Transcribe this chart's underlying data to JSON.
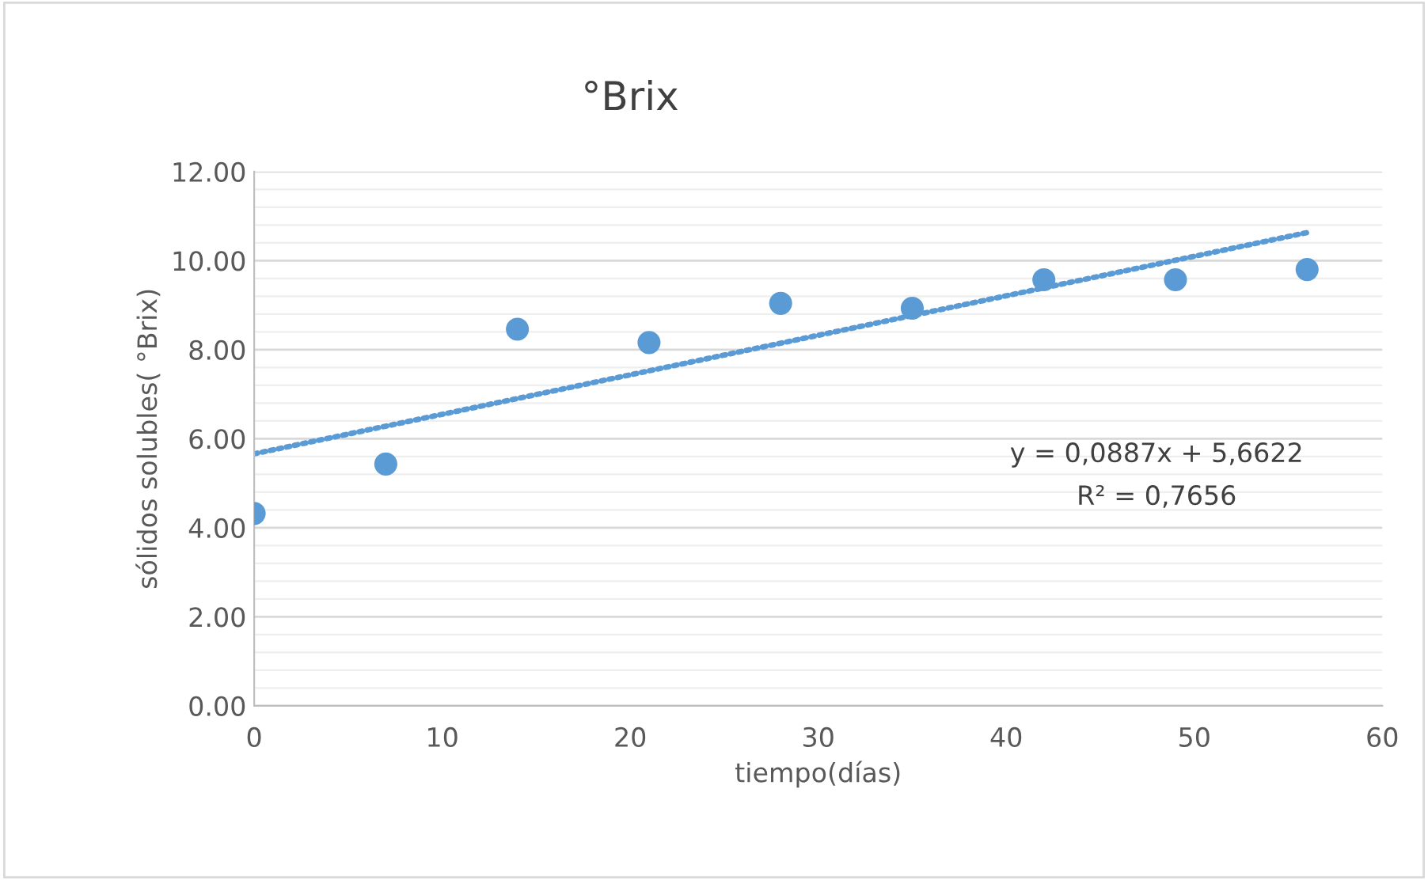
{
  "chart_data": {
    "type": "scatter",
    "title": "°Brix",
    "xlabel": "tiempo(días)",
    "ylabel": "sólidos solubles( °Brix)",
    "x": [
      0,
      7,
      14,
      21,
      28,
      35,
      42,
      49,
      56
    ],
    "series": [
      {
        "color": "#5b9bd5",
        "marker": "circle",
        "values": [
          4.32,
          5.43,
          8.46,
          8.16,
          9.04,
          8.93,
          9.57,
          9.57,
          9.8
        ]
      },
      {
        "type": "line",
        "color": "#5b9bd5",
        "line_style": "dotted",
        "marker": "none",
        "x": [
          0,
          56
        ],
        "values": [
          5.66,
          10.63
        ]
      }
    ],
    "annotations": [
      "y = 0,0887x + 5,6622",
      "R² = 0,7656"
    ],
    "xlim": [
      0,
      60
    ],
    "xticks": [
      0,
      10,
      20,
      30,
      40,
      50,
      60
    ],
    "ylim": [
      0,
      12
    ],
    "yticks": [
      {
        "value": 0,
        "label": "0.00"
      },
      {
        "value": 2,
        "label": "2.00"
      },
      {
        "value": 4,
        "label": "4.00"
      },
      {
        "value": 6,
        "label": "6.00"
      },
      {
        "value": 8,
        "label": "8.00"
      },
      {
        "value": 10,
        "label": "10.00"
      },
      {
        "value": 12,
        "label": "12.00"
      }
    ],
    "grid": "y",
    "legend": false
  }
}
